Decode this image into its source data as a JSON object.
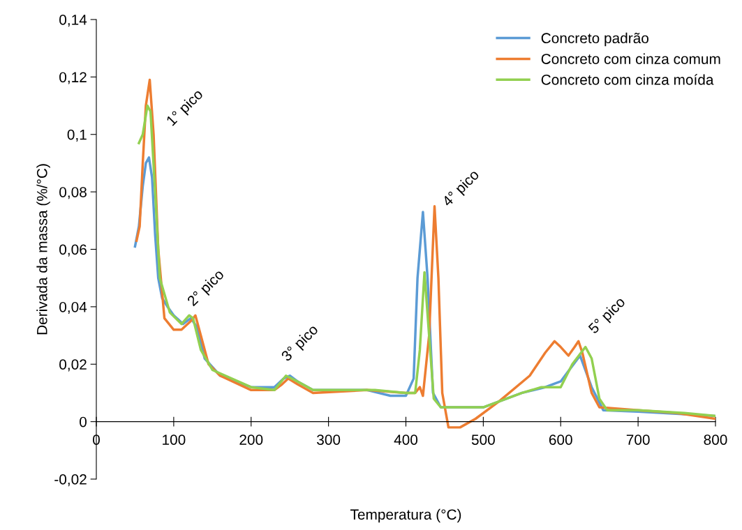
{
  "chart_data": {
    "type": "line",
    "xlabel": "Temperatura (°C)",
    "ylabel": "Derivada da massa (%/°C)",
    "xlim": [
      0,
      800
    ],
    "xticks": [
      0,
      100,
      200,
      300,
      400,
      500,
      600,
      700,
      800
    ],
    "ylim": [
      -0.02,
      0.14
    ],
    "yticks": [
      {
        "value": -0.02,
        "label": "-0,02"
      },
      {
        "value": 0,
        "label": "0"
      },
      {
        "value": 0.02,
        "label": "0,02"
      },
      {
        "value": 0.04,
        "label": "0,04"
      },
      {
        "value": 0.06,
        "label": "0,06"
      },
      {
        "value": 0.08,
        "label": "0,08"
      },
      {
        "value": 0.1,
        "label": "0,1"
      },
      {
        "value": 0.12,
        "label": "0,12"
      },
      {
        "value": 0.14,
        "label": "0,14"
      }
    ],
    "grid": false,
    "legend": "top right",
    "marker": "none",
    "line_style": "solid",
    "series": [
      {
        "name": "Concreto padrão",
        "color": "#5b9bd5",
        "x": [
          50,
          55,
          60,
          64,
          68,
          72,
          76,
          80,
          85,
          92,
          100,
          112,
          122,
          130,
          140,
          160,
          200,
          230,
          242,
          250,
          260,
          280,
          350,
          380,
          400,
          410,
          415,
          422,
          428,
          435,
          445,
          500,
          550,
          580,
          600,
          625,
          640,
          655,
          700,
          800
        ],
        "values": [
          0.061,
          0.068,
          0.082,
          0.09,
          0.092,
          0.085,
          0.065,
          0.05,
          0.043,
          0.04,
          0.037,
          0.034,
          0.036,
          0.033,
          0.022,
          0.016,
          0.012,
          0.012,
          0.015,
          0.016,
          0.014,
          0.011,
          0.011,
          0.009,
          0.009,
          0.015,
          0.05,
          0.073,
          0.05,
          0.01,
          0.005,
          0.005,
          0.01,
          0.012,
          0.014,
          0.023,
          0.012,
          0.004,
          0.0035,
          0.002
        ]
      },
      {
        "name": "Concreto com cinza comum",
        "color": "#ed7d31",
        "x": [
          52,
          56,
          60,
          64,
          69,
          74,
          80,
          88,
          100,
          110,
          122,
          128,
          135,
          145,
          160,
          200,
          230,
          240,
          248,
          260,
          280,
          350,
          400,
          412,
          418,
          422,
          430,
          437,
          442,
          447,
          455,
          470,
          490,
          520,
          560,
          580,
          592,
          600,
          610,
          618,
          623,
          628,
          640,
          650,
          700,
          750,
          800
        ],
        "values": [
          0.063,
          0.068,
          0.09,
          0.11,
          0.119,
          0.1,
          0.06,
          0.036,
          0.032,
          0.032,
          0.035,
          0.037,
          0.03,
          0.02,
          0.016,
          0.011,
          0.011,
          0.013,
          0.015,
          0.013,
          0.01,
          0.011,
          0.01,
          0.01,
          0.012,
          0.009,
          0.03,
          0.075,
          0.05,
          0.01,
          -0.002,
          -0.002,
          0.001,
          0.007,
          0.016,
          0.024,
          0.028,
          0.026,
          0.023,
          0.026,
          0.028,
          0.024,
          0.01,
          0.005,
          0.004,
          0.003,
          0.001
        ]
      },
      {
        "name": "Concreto com cinza moída",
        "color": "#92d050",
        "x": [
          55,
          60,
          66,
          70,
          76,
          82,
          95,
          110,
          120,
          125,
          135,
          150,
          200,
          230,
          245,
          260,
          280,
          320,
          360,
          400,
          412,
          418,
          424,
          430,
          436,
          445,
          500,
          550,
          575,
          600,
          615,
          632,
          640,
          650,
          660,
          700,
          760,
          800
        ],
        "values": [
          0.097,
          0.1,
          0.11,
          0.108,
          0.08,
          0.05,
          0.038,
          0.034,
          0.037,
          0.036,
          0.025,
          0.018,
          0.012,
          0.011,
          0.016,
          0.014,
          0.011,
          0.011,
          0.011,
          0.01,
          0.01,
          0.025,
          0.052,
          0.03,
          0.008,
          0.005,
          0.005,
          0.01,
          0.012,
          0.012,
          0.02,
          0.026,
          0.022,
          0.008,
          0.004,
          0.004,
          0.003,
          0.002
        ]
      }
    ],
    "annotations": [
      "1° pico",
      "2° pico",
      "3° pico",
      "4° pico",
      "5° pico"
    ]
  }
}
